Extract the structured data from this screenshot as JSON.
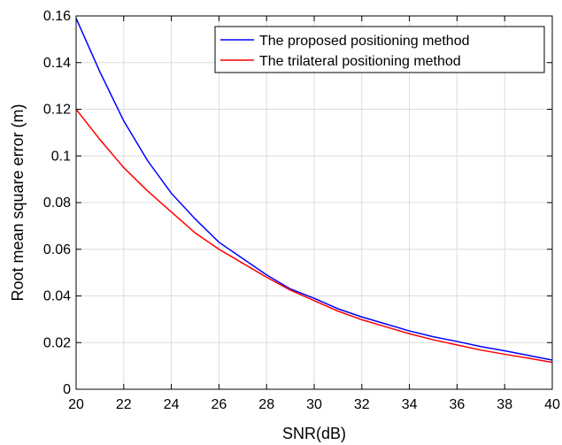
{
  "chart_data": {
    "type": "line",
    "title": "",
    "xlabel": "SNR(dB)",
    "ylabel": "Root mean square error (m)",
    "xlim": [
      20,
      40
    ],
    "ylim": [
      0,
      0.16
    ],
    "xticks": [
      "20",
      "22",
      "24",
      "26",
      "28",
      "30",
      "32",
      "34",
      "36",
      "38",
      "40"
    ],
    "yticks": [
      "0",
      "0.02",
      "0.04",
      "0.06",
      "0.08",
      "0.1",
      "0.12",
      "0.14",
      "0.16"
    ],
    "grid": true,
    "legend_position": "top-right",
    "x": [
      20,
      21,
      22,
      23,
      24,
      25,
      26,
      27,
      28,
      29,
      30,
      31,
      32,
      33,
      34,
      35,
      36,
      37,
      38,
      39,
      40
    ],
    "series": [
      {
        "name": "The proposed positioning method",
        "color": "#0000ff",
        "values": [
          0.159,
          0.136,
          0.115,
          0.098,
          0.084,
          0.073,
          0.063,
          0.056,
          0.049,
          0.043,
          0.039,
          0.0345,
          0.031,
          0.028,
          0.025,
          0.0225,
          0.0205,
          0.0183,
          0.0165,
          0.0145,
          0.0125
        ]
      },
      {
        "name": "The trilateral positioning method",
        "color": "#ff0000",
        "values": [
          0.12,
          0.107,
          0.095,
          0.085,
          0.076,
          0.067,
          0.06,
          0.054,
          0.048,
          0.0425,
          0.038,
          0.0335,
          0.0298,
          0.0268,
          0.0238,
          0.0212,
          0.019,
          0.0168,
          0.015,
          0.0133,
          0.0115
        ]
      }
    ]
  }
}
